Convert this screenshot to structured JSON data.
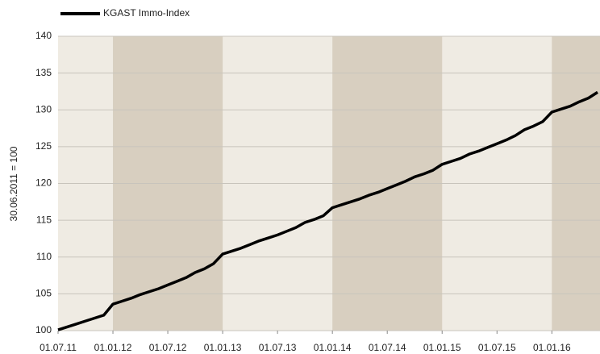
{
  "chart_data": {
    "type": "line",
    "legend": "top-left",
    "ylabel": "30.06.2011 = 100",
    "x": [
      "2011-07",
      "2011-08",
      "2011-09",
      "2011-10",
      "2011-11",
      "2011-12",
      "2012-01",
      "2012-02",
      "2012-03",
      "2012-04",
      "2012-05",
      "2012-06",
      "2012-07",
      "2012-08",
      "2012-09",
      "2012-10",
      "2012-11",
      "2012-12",
      "2013-01",
      "2013-02",
      "2013-03",
      "2013-04",
      "2013-05",
      "2013-06",
      "2013-07",
      "2013-08",
      "2013-09",
      "2013-10",
      "2013-11",
      "2013-12",
      "2014-01",
      "2014-02",
      "2014-03",
      "2014-04",
      "2014-05",
      "2014-06",
      "2014-07",
      "2014-08",
      "2014-09",
      "2014-10",
      "2014-11",
      "2014-12",
      "2015-01",
      "2015-02",
      "2015-03",
      "2015-04",
      "2015-05",
      "2015-06",
      "2015-07",
      "2015-08",
      "2015-09",
      "2015-10",
      "2015-11",
      "2015-12",
      "2016-01",
      "2016-02",
      "2016-03",
      "2016-04",
      "2016-05",
      "2016-06"
    ],
    "series": [
      {
        "name": "KGAST Immo-Index",
        "color": "#000000",
        "values": [
          100.1,
          100.5,
          100.9,
          101.3,
          101.7,
          102.1,
          103.6,
          104.0,
          104.4,
          104.9,
          105.3,
          105.7,
          106.2,
          106.7,
          107.2,
          107.9,
          108.4,
          109.1,
          110.4,
          110.8,
          111.2,
          111.7,
          112.2,
          112.6,
          113.0,
          113.5,
          114.0,
          114.7,
          115.1,
          115.6,
          116.7,
          117.1,
          117.5,
          117.9,
          118.4,
          118.8,
          119.3,
          119.8,
          120.3,
          120.9,
          121.3,
          121.8,
          122.6,
          123.0,
          123.4,
          124.0,
          124.4,
          124.9,
          125.4,
          125.9,
          126.5,
          127.3,
          127.8,
          128.4,
          129.7,
          130.1,
          130.5,
          131.1,
          131.6,
          132.4
        ]
      }
    ],
    "xlim": [
      "2011-07",
      "2016-06"
    ],
    "xticks": [
      {
        "value": "2011-07",
        "label": "01.07.11"
      },
      {
        "value": "2012-01",
        "label": "01.01.12"
      },
      {
        "value": "2012-07",
        "label": "01.07.12"
      },
      {
        "value": "2013-01",
        "label": "01.01.13"
      },
      {
        "value": "2013-07",
        "label": "01.07.13"
      },
      {
        "value": "2014-01",
        "label": "01.01.14"
      },
      {
        "value": "2014-07",
        "label": "01.07.14"
      },
      {
        "value": "2015-01",
        "label": "01.01.15"
      },
      {
        "value": "2015-07",
        "label": "01.07.15"
      },
      {
        "value": "2016-01",
        "label": "01.01.16"
      }
    ],
    "ylim": [
      100,
      140
    ],
    "yticks": [
      100,
      105,
      110,
      115,
      120,
      125,
      130,
      135,
      140
    ],
    "grid": true
  }
}
